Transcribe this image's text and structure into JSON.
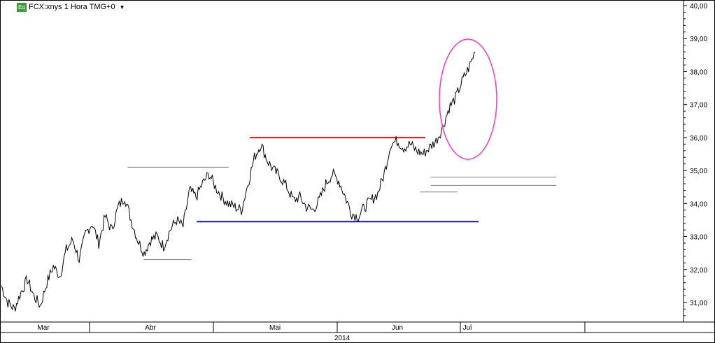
{
  "header": {
    "badge": "Eq",
    "symbol_label": "FCX:xnys 1 Hora TMG+0",
    "menu_icon": "chevron-down-icon"
  },
  "colors": {
    "price": "#000000",
    "resistance": "#ff0000",
    "support": "#0000cc",
    "level_lines": "#808080",
    "highlight_ellipse": "#ff33cc"
  },
  "chart_data": {
    "type": "line",
    "title": "",
    "xlabel": "",
    "ylabel": "",
    "ylim": [
      30.5,
      40.0
    ],
    "y_ticks": [
      "40,00",
      "39,00",
      "38,00",
      "37,00",
      "36,00",
      "35,00",
      "34,00",
      "33,00",
      "32,00",
      "31,00"
    ],
    "x_month_labels": [
      "Mar",
      "Abr",
      "Mai",
      "Jun",
      "Jul"
    ],
    "x_year_label": "2014",
    "series": [
      {
        "values": [
          31.5,
          31.0,
          30.8,
          31.3,
          31.7,
          31.2,
          30.9,
          31.6,
          32.1,
          31.8,
          32.6,
          32.9,
          32.3,
          33.1,
          33.4,
          32.8,
          33.6,
          33.2,
          33.9,
          34.2,
          33.5,
          32.9,
          32.5,
          32.9,
          33.0,
          32.7,
          33.2,
          33.5,
          33.3,
          34.4,
          34.2,
          34.6,
          34.9,
          34.5,
          34.2,
          34.0,
          33.9,
          33.8,
          34.6,
          35.4,
          35.8,
          35.3,
          35.0,
          34.8,
          34.5,
          34.1,
          34.2,
          33.9,
          33.8,
          34.1,
          34.6,
          34.9,
          34.7,
          34.2,
          33.7,
          33.6,
          33.9,
          34.1,
          34.3,
          34.9,
          35.8,
          35.9,
          35.7,
          35.8,
          35.6,
          35.5,
          35.7,
          35.9,
          36.3,
          36.9,
          37.2,
          37.7,
          38.1,
          38.6
        ],
        "x_start_pixel_note": ""
      }
    ],
    "annotations": [
      {
        "kind": "resistance",
        "value": 36.0,
        "from": 0.47,
        "to": 0.8
      },
      {
        "kind": "support",
        "value": 33.45,
        "from": 0.37,
        "to": 0.9
      },
      {
        "kind": "level",
        "value": 35.1,
        "from": 0.24,
        "to": 0.43
      },
      {
        "kind": "level",
        "value": 32.3,
        "from": 0.27,
        "to": 0.36
      },
      {
        "kind": "level",
        "value": 34.8,
        "from": 0.81,
        "to": 1.07
      },
      {
        "kind": "level",
        "value": 34.55,
        "from": 0.81,
        "to": 1.07
      },
      {
        "kind": "level",
        "value": 34.35,
        "from": 0.79,
        "to": 0.86
      }
    ]
  }
}
